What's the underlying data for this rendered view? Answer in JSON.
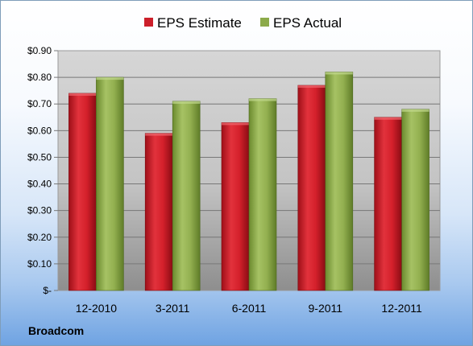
{
  "company": "Broadcom",
  "chart_data": {
    "type": "bar",
    "categories": [
      "12-2010",
      "3-2011",
      "6-2011",
      "9-2011",
      "12-2011"
    ],
    "series": [
      {
        "name": "EPS Estimate",
        "values": [
          0.74,
          0.59,
          0.63,
          0.77,
          0.65
        ],
        "color": "#cc1f2a"
      },
      {
        "name": "EPS Actual",
        "values": [
          0.8,
          0.71,
          0.72,
          0.82,
          0.68
        ],
        "color": "#8caa4a"
      }
    ],
    "y_ticks": [
      "$-",
      "$0.10",
      "$0.20",
      "$0.30",
      "$0.40",
      "$0.50",
      "$0.60",
      "$0.70",
      "$0.80",
      "$0.90"
    ],
    "ylim": [
      0,
      0.9
    ],
    "grid": true,
    "legend_position": "top"
  }
}
